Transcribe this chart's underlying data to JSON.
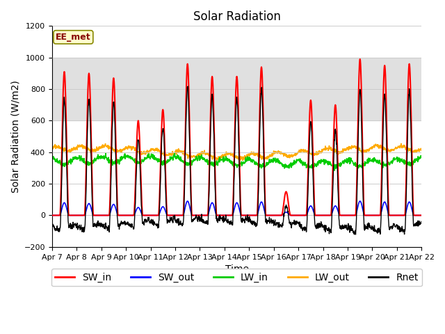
{
  "title": "Solar Radiation",
  "xlabel": "Time",
  "ylabel": "Solar Radiation (W/m2)",
  "ylim": [
    -200,
    1200
  ],
  "date_labels": [
    "Apr 7",
    "Apr 8",
    "Apr 9",
    "Apr 10",
    "Apr 11",
    "Apr 12",
    "Apr 13",
    "Apr 14",
    "Apr 15",
    "Apr 16",
    "Apr 17",
    "Apr 18",
    "Apr 19",
    "Apr 20",
    "Apr 21",
    "Apr 22"
  ],
  "yticks": [
    -200,
    0,
    200,
    400,
    600,
    800,
    1000,
    1200
  ],
  "shading_ylim": [
    600,
    1000
  ],
  "annotation_text": "EE_met",
  "annotation_color_bg": "#ffffcc",
  "annotation_color_border": "#888800",
  "annotation_text_color": "#880000",
  "colors": {
    "SW_in": "#ff0000",
    "SW_out": "#0000ff",
    "LW_in": "#00cc00",
    "LW_out": "#ffaa00",
    "Rnet": "#000000"
  },
  "legend_labels": [
    "SW_in",
    "SW_out",
    "LW_in",
    "LW_out",
    "Rnet"
  ],
  "grid_color": "#cccccc",
  "bg_color": "#ffffff",
  "shading_color": "#e0e0e0",
  "title_fontsize": 12,
  "label_fontsize": 10,
  "tick_fontsize": 8,
  "legend_fontsize": 10,
  "sw_in_peaks": [
    910,
    900,
    870,
    600,
    670,
    960,
    880,
    880,
    940,
    150,
    730,
    700,
    990,
    950,
    960
  ],
  "sw_out_peaks": [
    80,
    75,
    70,
    50,
    55,
    90,
    80,
    80,
    85,
    20,
    60,
    60,
    90,
    85,
    85
  ]
}
